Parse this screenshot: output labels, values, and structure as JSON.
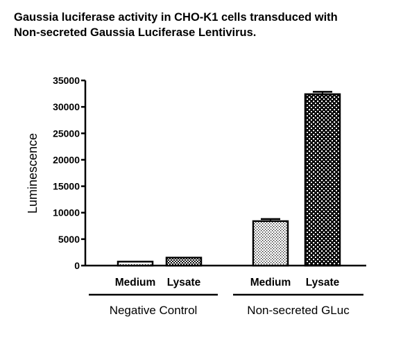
{
  "chart_data": {
    "type": "bar",
    "title_line1": "Gaussia luciferase activity in CHO-K1 cells transduced with",
    "title_line2": "Non-secreted Gaussia Luciferase Lentivirus.",
    "ylabel": "Luminescence",
    "xlabel": "",
    "ylim": [
      0,
      35000
    ],
    "yticks": [
      "0",
      "5000",
      "10000",
      "15000",
      "20000",
      "25000",
      "30000",
      "35000"
    ],
    "categories": [
      "Medium",
      "Lysate",
      "Medium",
      "Lysate"
    ],
    "groups": [
      {
        "name": "Negative Control",
        "members": [
          0,
          1
        ]
      },
      {
        "name": "Non-secreted GLuc",
        "members": [
          2,
          3
        ]
      }
    ],
    "values": [
      750,
      1500,
      8400,
      32400
    ],
    "errors": [
      0,
      0,
      400,
      450
    ],
    "patterns": [
      "sparse-dots",
      "checker",
      "fine-dots",
      "checker-coarse"
    ],
    "bar_color": "#000000",
    "grid": false,
    "legend": "none"
  }
}
